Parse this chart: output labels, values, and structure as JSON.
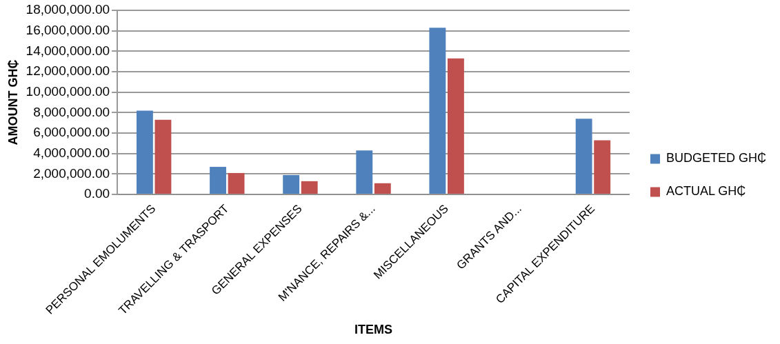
{
  "chart_data": {
    "type": "bar",
    "xlabel": "ITEMS",
    "ylabel": "AMOUNT GH₵",
    "categories": [
      "PERSONAL EMOLUMENTS",
      "TRAVELLING & TRASPORT",
      "GENERAL EXPENSES",
      "M'NANCE, REPAIRS &...",
      "MISCELLANEOUS",
      "GRANTS AND...",
      "CAPITAL EXPENDITURE"
    ],
    "series": [
      {
        "name": "BUDGETED GH₵",
        "color": "#4f81bd",
        "values": [
          8200000,
          2700000,
          1900000,
          4300000,
          16300000,
          0,
          7400000
        ]
      },
      {
        "name": "ACTUAL GH₵",
        "color": "#c0504d",
        "values": [
          7300000,
          2100000,
          1300000,
          1100000,
          13300000,
          0,
          5300000
        ]
      }
    ],
    "ylim": [
      0,
      18000000
    ],
    "yticks": [
      {
        "value": 0,
        "label": "0.00"
      },
      {
        "value": 2000000,
        "label": "2,000,000.00"
      },
      {
        "value": 4000000,
        "label": "4,000,000.00"
      },
      {
        "value": 6000000,
        "label": "6,000,000.00"
      },
      {
        "value": 8000000,
        "label": "8,000,000.00"
      },
      {
        "value": 10000000,
        "label": "10,000,000.00"
      },
      {
        "value": 12000000,
        "label": "12,000,000.00"
      },
      {
        "value": 14000000,
        "label": "14,000,000.00"
      },
      {
        "value": 16000000,
        "label": "16,000,000.00"
      },
      {
        "value": 18000000,
        "label": "18,000,000.00"
      }
    ],
    "grid": "y",
    "legend": "right"
  }
}
